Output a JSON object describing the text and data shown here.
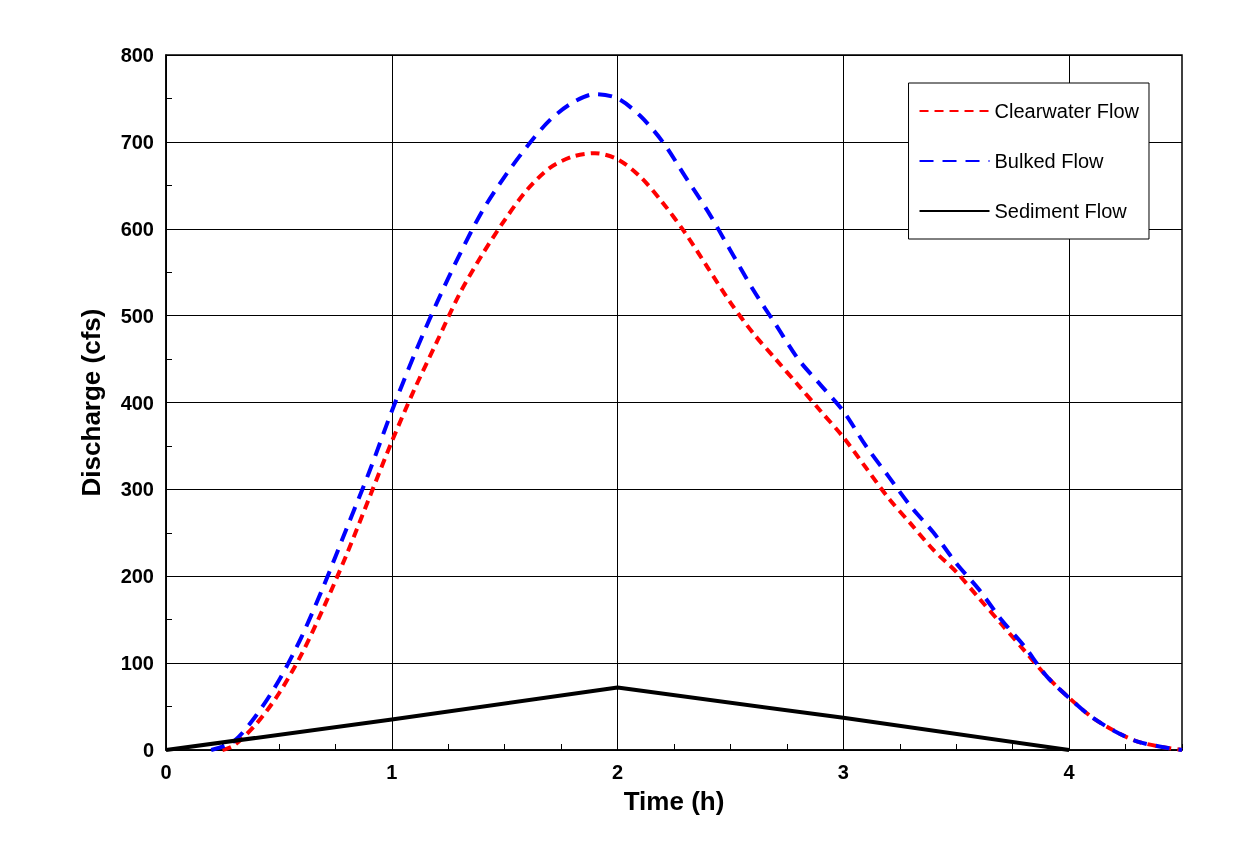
{
  "chart_data": {
    "type": "line",
    "xlabel": "Time (h)",
    "ylabel": "Discharge (cfs)",
    "xlim": [
      0,
      4.5
    ],
    "ylim": [
      0,
      800
    ],
    "xticks": [
      0,
      {
        "value": 0.25,
        "label": null
      },
      {
        "value": 0.5,
        "label": null
      },
      {
        "value": 0.75,
        "label": null
      },
      1,
      {
        "value": 1.25,
        "label": null
      },
      {
        "value": 1.5,
        "label": null
      },
      {
        "value": 1.75,
        "label": null
      },
      2,
      {
        "value": 2.25,
        "label": null
      },
      {
        "value": 2.5,
        "label": null
      },
      {
        "value": 2.75,
        "label": null
      },
      3,
      {
        "value": 3.25,
        "label": null
      },
      {
        "value": 3.5,
        "label": null
      },
      {
        "value": 3.75,
        "label": null
      },
      4,
      {
        "value": 4.25,
        "label": null
      },
      {
        "value": 4.5,
        "label": null
      }
    ],
    "yticks": [
      0,
      {
        "value": 50,
        "label": null
      },
      100,
      {
        "value": 150,
        "label": null
      },
      200,
      {
        "value": 250,
        "label": null
      },
      300,
      {
        "value": 350,
        "label": null
      },
      400,
      {
        "value": 450,
        "label": null
      },
      500,
      {
        "value": 550,
        "label": null
      },
      600,
      {
        "value": 650,
        "label": null
      },
      700,
      {
        "value": 750,
        "label": null
      },
      800
    ],
    "grid": true,
    "legend": "top right",
    "series": [
      {
        "name": "Clearwater Flow",
        "color": "#ff0000",
        "line_style": "dotted",
        "x": [
          0.25,
          0.3,
          0.4,
          0.5,
          0.6,
          0.7,
          0.8,
          0.9,
          1.0,
          1.1,
          1.2,
          1.3,
          1.4,
          1.5,
          1.6,
          1.7,
          1.8,
          1.9,
          2.0,
          2.1,
          2.2,
          2.3,
          2.4,
          2.5,
          2.6,
          2.7,
          2.8,
          2.9,
          3.0,
          3.1,
          3.2,
          3.3,
          3.4,
          3.5,
          3.6,
          3.7,
          3.8,
          3.9,
          4.0,
          4.1,
          4.2,
          4.3,
          4.4,
          4.5
        ],
        "values": [
          0,
          5,
          30,
          65,
          110,
          165,
          225,
          290,
          355,
          415,
          470,
          525,
          570,
          610,
          645,
          670,
          683,
          687,
          680,
          660,
          630,
          595,
          555,
          515,
          480,
          450,
          420,
          390,
          360,
          325,
          290,
          260,
          230,
          205,
          175,
          145,
          115,
          85,
          60,
          38,
          22,
          10,
          4,
          0
        ]
      },
      {
        "name": "Bulked Flow",
        "color": "#0000ff",
        "line_style": "dashed",
        "x": [
          0.2,
          0.3,
          0.4,
          0.5,
          0.6,
          0.7,
          0.8,
          0.9,
          1.0,
          1.1,
          1.2,
          1.3,
          1.4,
          1.5,
          1.6,
          1.7,
          1.8,
          1.9,
          2.0,
          2.1,
          2.2,
          2.3,
          2.4,
          2.5,
          2.6,
          2.7,
          2.8,
          2.9,
          3.0,
          3.1,
          3.2,
          3.3,
          3.4,
          3.5,
          3.6,
          3.7,
          3.8,
          3.9,
          4.0,
          4.1,
          4.2,
          4.3,
          4.4,
          4.5
        ],
        "values": [
          0,
          10,
          40,
          80,
          130,
          190,
          255,
          320,
          390,
          455,
          515,
          570,
          620,
          660,
          695,
          725,
          745,
          755,
          750,
          730,
          700,
          660,
          620,
          575,
          530,
          490,
          450,
          420,
          390,
          350,
          315,
          280,
          250,
          215,
          185,
          150,
          120,
          85,
          60,
          38,
          22,
          10,
          4,
          0
        ]
      },
      {
        "name": "Sediment Flow",
        "color": "#000000",
        "line_style": "solid",
        "x": [
          0,
          1,
          2,
          3,
          4
        ],
        "values": [
          0,
          35,
          72,
          37,
          0
        ]
      }
    ]
  }
}
